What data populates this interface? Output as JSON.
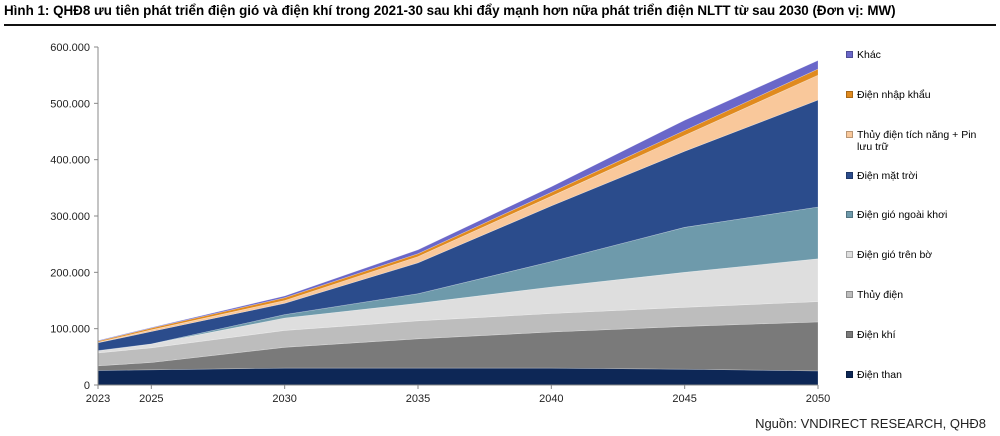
{
  "title": "Hình 1: QHĐ8 ưu tiên phát triển điện gió và điện khí trong 2021-30 sau khi đẩy mạnh hơn nữa phát triển điện NLTT từ sau 2030 (Đơn vị: MW)",
  "source": "Nguồn: VNDIRECT RESEARCH, QHĐ8",
  "chart_data": {
    "type": "area",
    "stacked": true,
    "x": [
      2023,
      2025,
      2030,
      2035,
      2040,
      2045,
      2050
    ],
    "x_tick_labels": [
      "2023",
      "2025",
      "2030",
      "2035",
      "2040",
      "2045",
      "2050"
    ],
    "ylim": [
      0,
      600000
    ],
    "y_ticks": [
      0,
      100000,
      200000,
      300000,
      400000,
      500000,
      600000
    ],
    "y_tick_labels": [
      "0",
      "100.000",
      "200.000",
      "300.000",
      "400.000",
      "500.000",
      "600.000"
    ],
    "legend_position": "right",
    "series": [
      {
        "name": "Điện than",
        "color": "#0d2756",
        "values": [
          26000,
          27000,
          30000,
          30000,
          30000,
          28000,
          25000
        ]
      },
      {
        "name": "Điện khí",
        "color": "#7a7a7a",
        "values": [
          8000,
          13000,
          37000,
          52000,
          64000,
          76000,
          87000
        ]
      },
      {
        "name": "Thủy điện",
        "color": "#bdbdbd",
        "values": [
          23000,
          26000,
          30000,
          32000,
          33000,
          34000,
          36000
        ]
      },
      {
        "name": "Điện gió trên bờ",
        "color": "#dedede",
        "values": [
          4000,
          7000,
          22000,
          31000,
          47000,
          62000,
          76000
        ]
      },
      {
        "name": "Điện gió ngoài khơi",
        "color": "#6e9aab",
        "values": [
          0,
          0,
          6000,
          17000,
          45000,
          80000,
          92000
        ]
      },
      {
        "name": "Điện mặt trời",
        "color": "#2b4c8c",
        "values": [
          14000,
          22000,
          20000,
          55000,
          99000,
          135000,
          190000
        ]
      },
      {
        "name": "Thủy điện tích năng + Pin lưu trữ",
        "color": "#f9c89b",
        "values": [
          1000,
          3000,
          5000,
          11000,
          17000,
          28000,
          44000
        ]
      },
      {
        "name": "Điện nhập khẩu",
        "color": "#e08a1e",
        "values": [
          2000,
          3000,
          5000,
          5000,
          7000,
          9000,
          11000
        ]
      },
      {
        "name": "Khác",
        "color": "#6a67c9",
        "values": [
          1000,
          1000,
          3000,
          7000,
          10000,
          18000,
          15000
        ]
      }
    ]
  }
}
